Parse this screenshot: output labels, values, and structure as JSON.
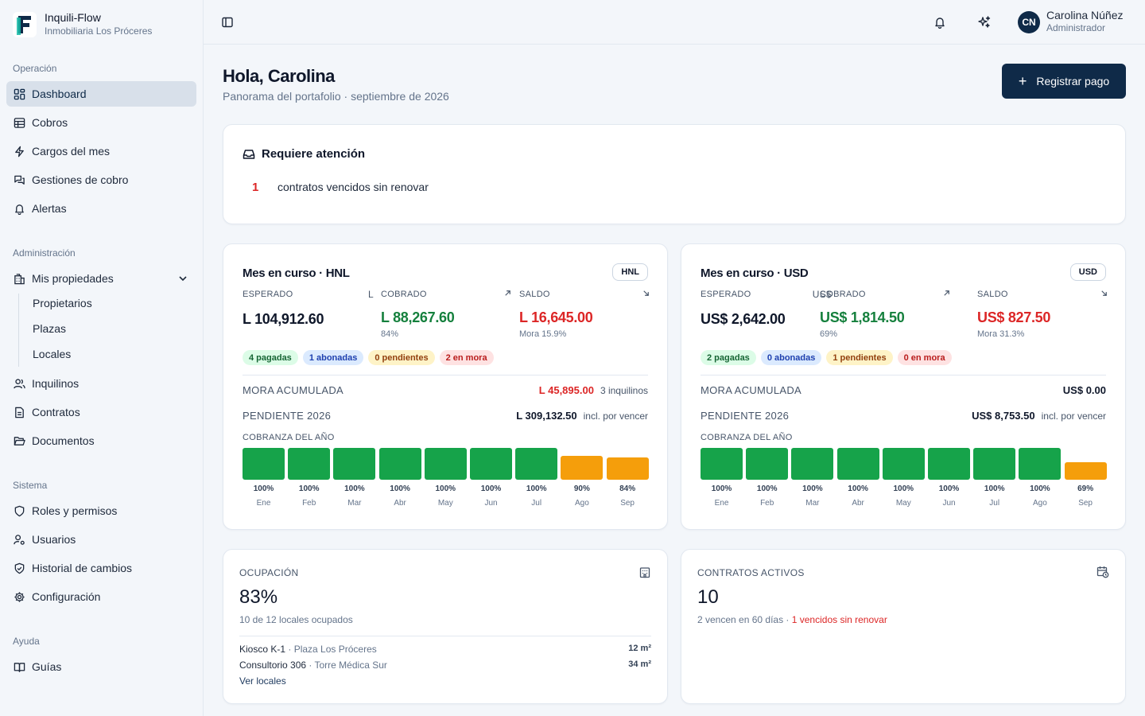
{
  "brand": {
    "title": "Inquili-Flow",
    "subtitle": "Inmobiliaria Los Próceres"
  },
  "sidebar": {
    "sections": {
      "operacion": "Operación",
      "administracion": "Administración",
      "sistema": "Sistema",
      "ayuda": "Ayuda"
    },
    "items": {
      "dashboard": "Dashboard",
      "cobros": "Cobros",
      "cargos": "Cargos del mes",
      "gestiones": "Gestiones de cobro",
      "alertas": "Alertas",
      "propiedades": "Mis propiedades",
      "propietarios": "Propietarios",
      "plazas": "Plazas",
      "locales": "Locales",
      "inquilinos": "Inquilinos",
      "contratos": "Contratos",
      "documentos": "Documentos",
      "roles": "Roles y permisos",
      "usuarios": "Usuarios",
      "historial": "Historial de cambios",
      "configuracion": "Configuración",
      "guias": "Guías"
    }
  },
  "header": {
    "user": {
      "initials": "CN",
      "name": "Carolina Núñez",
      "role": "Administrador"
    }
  },
  "page": {
    "greeting": "Hola, Carolina",
    "subtitle": "Panorama del portafolio · septiembre de 2026",
    "primary_button": "Registrar pago"
  },
  "attention": {
    "title": "Requiere atención",
    "count": "1",
    "text": "contratos vencidos sin renovar"
  },
  "months": [
    "Ene",
    "Feb",
    "Mar",
    "Abr",
    "May",
    "Jun",
    "Jul",
    "Ago",
    "Sep"
  ],
  "colors": {
    "full": "#16a34a",
    "partial": "#f59e0b",
    "red": "#dc2626",
    "green": "#15803d",
    "navy": "#0f2a48"
  },
  "hnl": {
    "title": "Mes en curso · HNL",
    "badge": "HNL",
    "esperado_label": "ESPERADO",
    "esperado_sym": "L",
    "esperado": "L 104,912.60",
    "cobrado_label": "COBRADO",
    "cobrado": "L 88,267.60",
    "cobrado_sub": "84%",
    "saldo_label": "SALDO",
    "saldo": "L 16,645.00",
    "saldo_sub": "Mora 15.9%",
    "pills": {
      "pagadas": "4 pagadas",
      "abonadas": "1 abonadas",
      "pendientes": "0 pendientes",
      "mora": "2 en mora"
    },
    "mora_label": "MORA ACUMULADA",
    "mora_value": "L 45,895.00",
    "mora_note": "3 inquilinos",
    "pend_label": "PENDIENTE 2026",
    "pend_value": "L 309,132.50",
    "pend_note": "incl. por vencer",
    "year_label": "COBRANZA DEL AÑO",
    "bars_pct": [
      "100%",
      "100%",
      "100%",
      "100%",
      "100%",
      "100%",
      "100%",
      "90%",
      "84%"
    ],
    "bars_values": [
      100,
      100,
      100,
      100,
      100,
      100,
      100,
      90,
      84
    ]
  },
  "usd": {
    "title": "Mes en curso · USD",
    "badge": "USD",
    "esperado_label": "ESPERADO",
    "esperado_sym": "US$",
    "esperado": "US$ 2,642.00",
    "cobrado_label": "COBRADO",
    "cobrado": "US$ 1,814.50",
    "cobrado_sub": "69%",
    "saldo_label": "SALDO",
    "saldo": "US$ 827.50",
    "saldo_sub": "Mora 31.3%",
    "pills": {
      "pagadas": "2 pagadas",
      "abonadas": "0 abonadas",
      "pendientes": "1 pendientes",
      "mora": "0 en mora"
    },
    "mora_label": "MORA ACUMULADA",
    "mora_value": "US$ 0.00",
    "pend_label": "PENDIENTE 2026",
    "pend_value": "US$ 8,753.50",
    "pend_note": "incl. por vencer",
    "year_label": "COBRANZA DEL AÑO",
    "bars_pct": [
      "100%",
      "100%",
      "100%",
      "100%",
      "100%",
      "100%",
      "100%",
      "100%",
      "69%"
    ],
    "bars_values": [
      100,
      100,
      100,
      100,
      100,
      100,
      100,
      100,
      69
    ]
  },
  "ocupacion": {
    "label": "OCUPACIÓN",
    "value": "83%",
    "sub": "10 de 12 locales ocupados",
    "locales": [
      {
        "name": "Kiosco K-1",
        "plaza": " · Plaza Los Próceres",
        "size": "12 m²"
      },
      {
        "name": "Consultorio 306",
        "plaza": " · Torre Médica Sur",
        "size": "34 m²"
      }
    ],
    "link": "Ver locales"
  },
  "contratos": {
    "label": "CONTRATOS ACTIVOS",
    "value": "10",
    "sub": "2 vencen en 60 días · ",
    "sub_red": "1 vencidos sin renovar"
  }
}
